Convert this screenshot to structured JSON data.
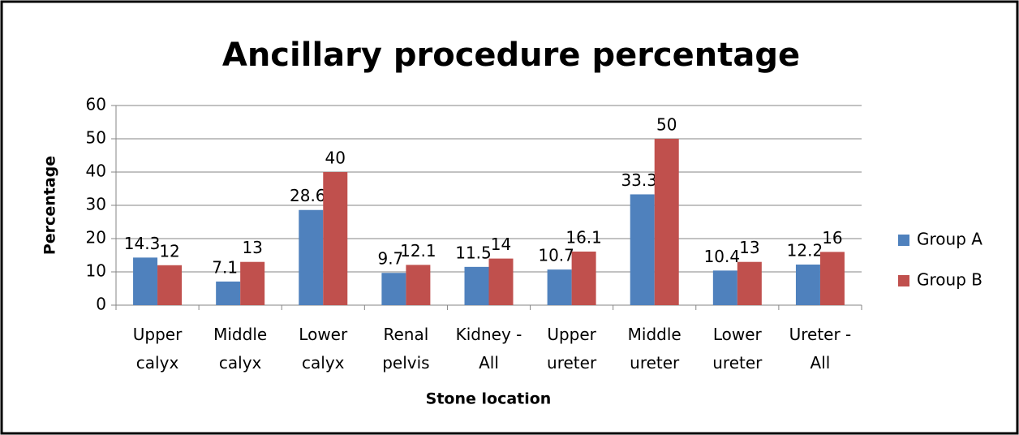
{
  "chart_data": {
    "type": "bar",
    "title": "Ancillary procedure percentage",
    "x_label": "Stone location",
    "y_label": "Percentage",
    "categories": [
      "Upper calyx",
      "Middle calyx",
      "Lower calyx",
      "Renal pelvis",
      "Kidney - All",
      "Upper ureter",
      "Middle ureter",
      "Lower ureter",
      "Ureter - All"
    ],
    "series": [
      {
        "name": "Group A",
        "color": "#4f81bd",
        "values": [
          14.3,
          7.1,
          28.6,
          9.7,
          11.5,
          10.7,
          33.3,
          10.4,
          12.2
        ]
      },
      {
        "name": "Group B",
        "color": "#c0504d",
        "values": [
          12,
          13,
          40,
          12.1,
          14,
          16.1,
          50,
          13,
          16
        ]
      }
    ],
    "ylim": [
      0,
      60
    ],
    "yticks": [
      0,
      10,
      20,
      30,
      40,
      50,
      60
    ],
    "grid": true,
    "legend": "right"
  }
}
